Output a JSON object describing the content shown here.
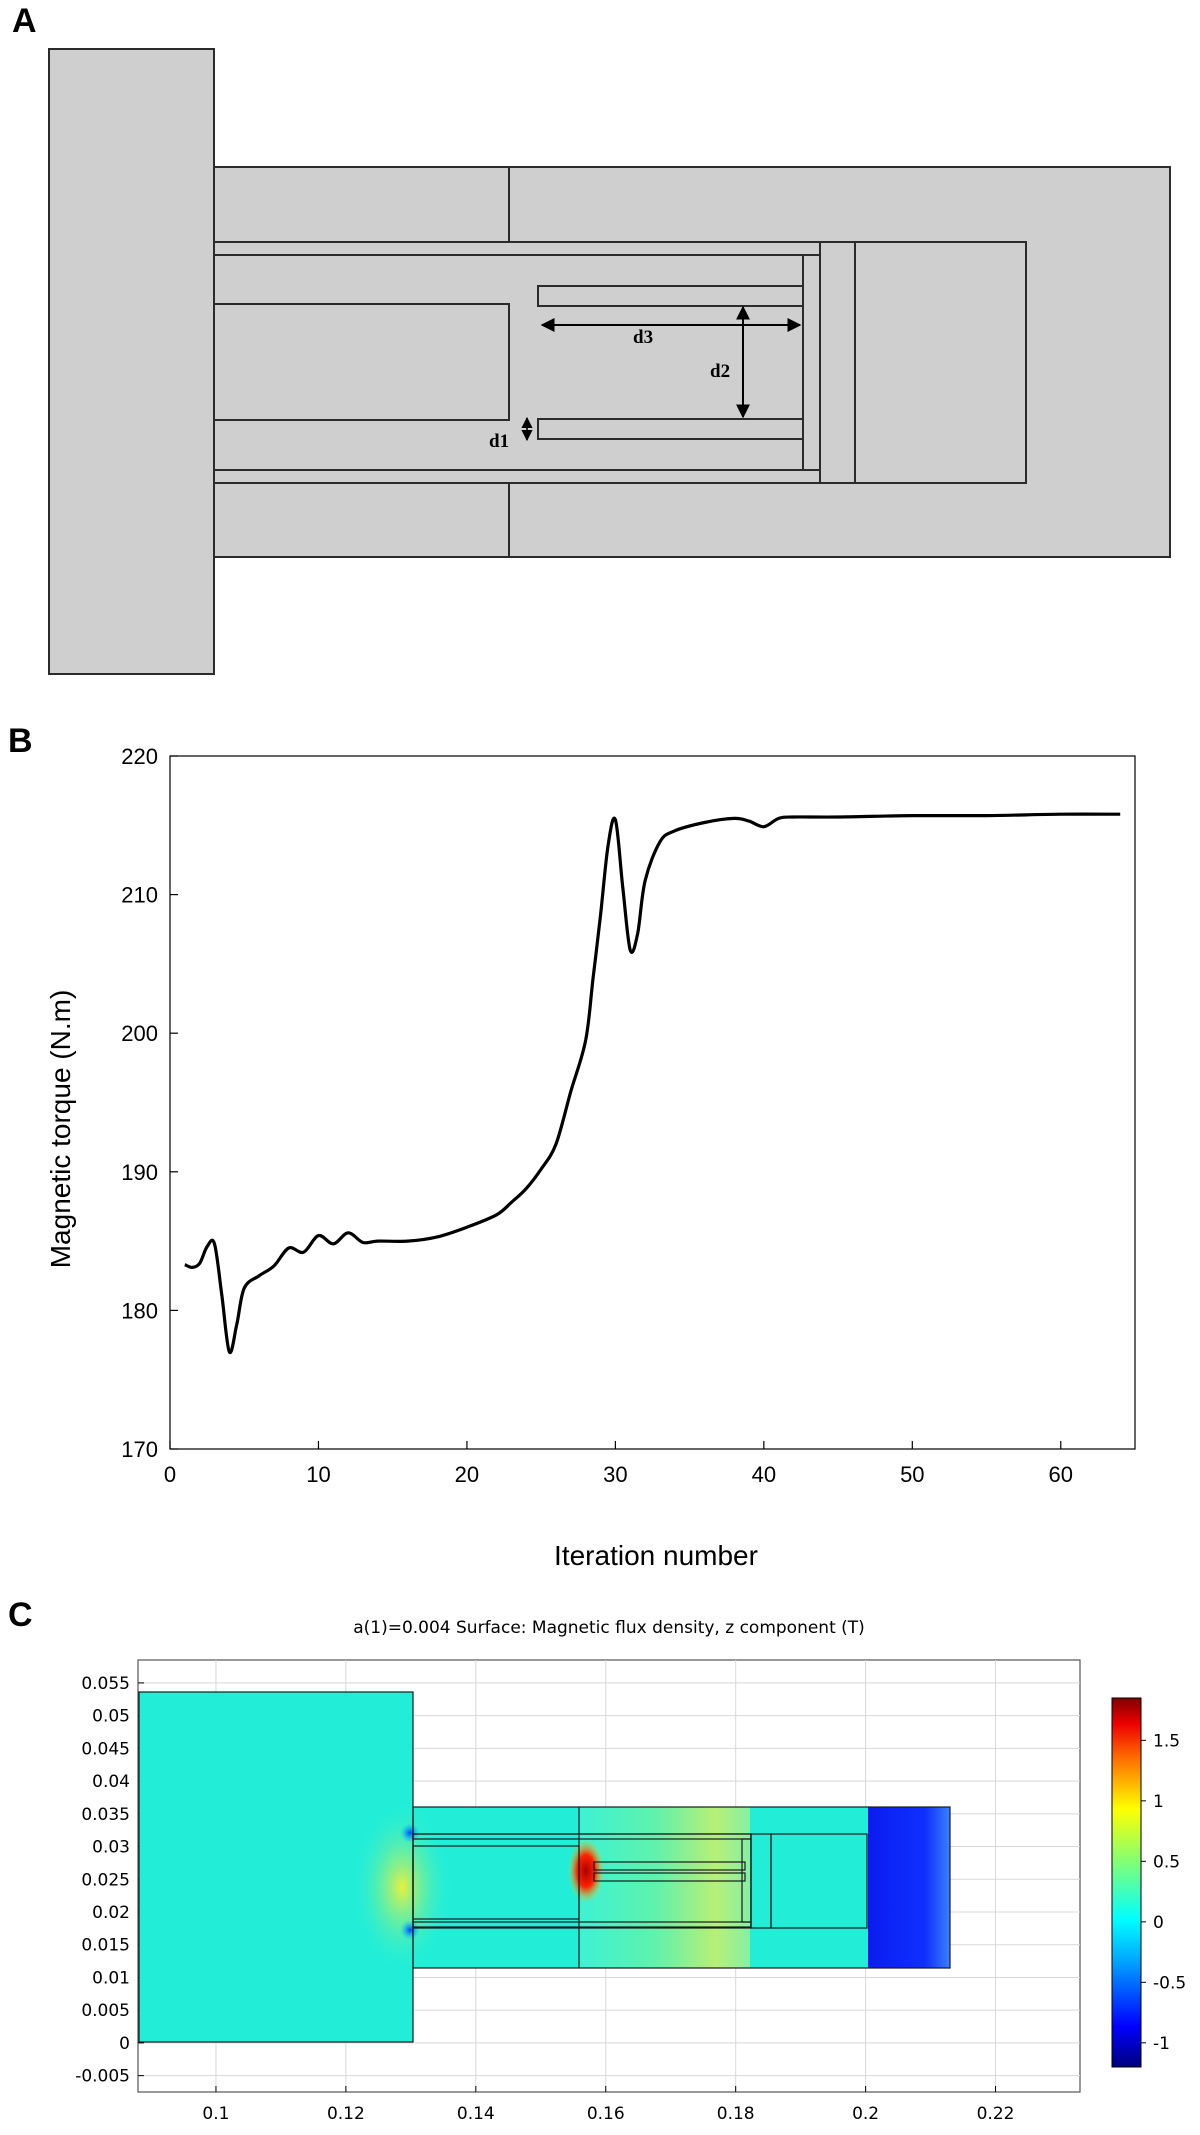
{
  "panels": {
    "a": {
      "letter": "A",
      "dimensions": [
        "d1",
        "d2",
        "d3"
      ]
    },
    "b": {
      "letter": "B"
    },
    "c": {
      "letter": "C",
      "title": "a(1)=0.004   Surface: Magnetic flux density, z component (T)"
    }
  },
  "colors": {
    "geometry_fill": "#cfcfcf",
    "geometry_stroke": "#2b2b2b",
    "curve": "#000000"
  },
  "chart_data": [
    {
      "type": "line",
      "panel": "B",
      "title": "",
      "xlabel": "Iteration number",
      "ylabel": "Magnetic torque (N.m)",
      "xlim": [
        0,
        65
      ],
      "ylim": [
        170,
        220
      ],
      "xticks": [
        0,
        10,
        20,
        30,
        40,
        50,
        60
      ],
      "yticks": [
        170,
        180,
        190,
        200,
        210,
        220
      ],
      "grid": false,
      "series": [
        {
          "x": [
            1,
            1.5,
            2,
            2.5,
            3,
            3.5,
            4,
            4.5,
            5,
            6,
            7,
            8,
            9,
            10,
            11,
            12,
            13,
            14,
            16,
            18,
            20,
            22,
            23,
            24,
            25,
            26,
            27,
            28,
            28.5,
            29,
            29.5,
            30,
            30.5,
            31,
            31.5,
            32,
            33,
            34,
            36,
            38,
            39,
            40,
            41,
            42,
            45,
            50,
            55,
            60,
            64
          ],
          "y": [
            183.3,
            183.1,
            183.4,
            184.6,
            184.8,
            181.0,
            177.0,
            179.0,
            181.6,
            182.5,
            183.2,
            184.5,
            184.2,
            185.4,
            184.8,
            185.6,
            184.9,
            185.0,
            185.0,
            185.3,
            186.0,
            186.9,
            187.8,
            188.8,
            190.2,
            192.0,
            195.8,
            199.5,
            204.0,
            208.5,
            213.5,
            215.4,
            210.5,
            206.0,
            207.2,
            211.0,
            213.8,
            214.6,
            215.2,
            215.5,
            215.3,
            214.9,
            215.5,
            215.6,
            215.6,
            215.7,
            215.7,
            215.8,
            215.8
          ]
        }
      ]
    },
    {
      "type": "heatmap",
      "panel": "C",
      "title": "a(1)=0.004   Surface: Magnetic flux density, z component (T)",
      "xlim": [
        0.088,
        0.233
      ],
      "ylim": [
        -0.0075,
        0.0585
      ],
      "xticks": [
        0.1,
        0.12,
        0.14,
        0.16,
        0.18,
        0.2,
        0.22
      ],
      "xtick_labels": [
        "0.1",
        "0.12",
        "0.14",
        "0.16",
        "0.18",
        "0.2",
        "0.22"
      ],
      "yticks": [
        -0.005,
        0,
        0.005,
        0.01,
        0.015,
        0.02,
        0.025,
        0.03,
        0.035,
        0.04,
        0.045,
        0.05,
        0.055
      ],
      "ytick_labels": [
        "-0.005",
        "0",
        "0.005",
        "0.01",
        "0.015",
        "0.02",
        "0.025",
        "0.03",
        "0.035",
        "0.04",
        "0.045",
        "0.05",
        "0.055"
      ],
      "colorbar": {
        "range": [
          -1.2,
          1.85
        ],
        "ticks": [
          -1,
          -0.5,
          0,
          0.5,
          1,
          1.5
        ],
        "tick_labels": [
          "-1",
          "-0.5",
          "0",
          "0.5",
          "1",
          "1.5"
        ],
        "colormap": "jet"
      },
      "grid": true
    }
  ]
}
